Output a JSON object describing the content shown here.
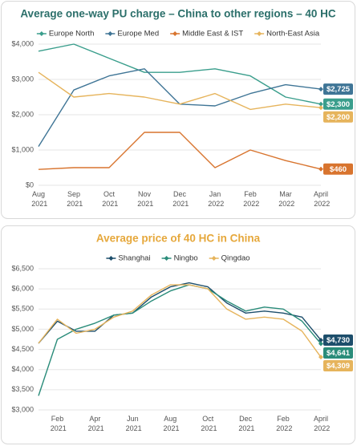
{
  "chart_data": [
    {
      "type": "line",
      "title": "Average one-way PU charge – China to other regions – 40 HC",
      "title_color": "#2b6f6a",
      "categories": [
        "Aug 2021",
        "Sep 2021",
        "Oct 2021",
        "Nov 2021",
        "Dec 2021",
        "Jan 2022",
        "Feb 2022",
        "Mar 2022",
        "April 2022"
      ],
      "series": [
        {
          "name": "Europe North",
          "color": "#3a9e8c",
          "values": [
            3800,
            4000,
            3600,
            3200,
            3200,
            3300,
            3100,
            2500,
            2300
          ],
          "value_labels": [
            null,
            null,
            null,
            null,
            null,
            null,
            null,
            null,
            "$2,300"
          ]
        },
        {
          "name": "Europe Med",
          "color": "#3f7596",
          "values": [
            1100,
            2700,
            3100,
            3300,
            2300,
            2250,
            2600,
            2850,
            2725
          ],
          "value_labels": [
            null,
            null,
            null,
            null,
            null,
            null,
            null,
            null,
            "$2,725"
          ]
        },
        {
          "name": "Middle East & IST",
          "color": "#d8742e",
          "values": [
            450,
            500,
            500,
            1500,
            1500,
            500,
            1000,
            700,
            460
          ],
          "value_labels": [
            null,
            null,
            null,
            null,
            null,
            null,
            null,
            null,
            "$460"
          ]
        },
        {
          "name": "North-East Asia",
          "color": "#e6b45c",
          "values": [
            3200,
            2500,
            2600,
            2500,
            2300,
            2600,
            2150,
            2300,
            2200
          ],
          "value_labels": [
            null,
            null,
            null,
            null,
            null,
            null,
            null,
            null,
            "$2,200"
          ]
        }
      ],
      "ylim": [
        0,
        4000
      ],
      "yticks": [
        {
          "value": 0,
          "label": "$0"
        },
        {
          "value": 1000,
          "label": "$1,000"
        },
        {
          "value": 2000,
          "label": "$2,000"
        },
        {
          "value": 3000,
          "label": "$3,000"
        },
        {
          "value": 4000,
          "label": "$4,000"
        }
      ],
      "grid": true,
      "legend": "top"
    },
    {
      "type": "line",
      "title": "Average price of 40 HC in China",
      "title_color": "#e6a83c",
      "categories": [
        null,
        "Feb 2021",
        null,
        "Apr 2021",
        null,
        "Jun 2021",
        null,
        "Aug 2021",
        null,
        "Oct 2021",
        null,
        "Dec 2021",
        null,
        "Feb 2022",
        null,
        "April 2022"
      ],
      "series": [
        {
          "name": "Shanghai",
          "color": "#1d4e6b",
          "values": [
            4650,
            5200,
            4950,
            4950,
            5350,
            5400,
            5800,
            6050,
            6150,
            6050,
            5650,
            5400,
            5450,
            5400,
            5300,
            4730
          ],
          "value_labels": [
            null,
            null,
            null,
            null,
            null,
            null,
            null,
            null,
            null,
            null,
            null,
            null,
            null,
            null,
            null,
            "$4,730"
          ]
        },
        {
          "name": "Ningbo",
          "color": "#2a8c7a",
          "values": [
            3350,
            4750,
            5000,
            5150,
            5350,
            5400,
            5700,
            5950,
            6100,
            6000,
            5700,
            5450,
            5550,
            5500,
            5200,
            4641
          ],
          "value_labels": [
            null,
            null,
            null,
            null,
            null,
            null,
            null,
            null,
            null,
            null,
            null,
            null,
            null,
            null,
            null,
            "$4,641"
          ]
        },
        {
          "name": "Qingdao",
          "color": "#e6b45c",
          "values": [
            4650,
            5250,
            4900,
            5000,
            5300,
            5450,
            5850,
            6100,
            6100,
            6000,
            5500,
            5250,
            5300,
            5250,
            4950,
            4309
          ],
          "value_labels": [
            null,
            null,
            null,
            null,
            null,
            null,
            null,
            null,
            null,
            null,
            null,
            null,
            null,
            null,
            null,
            "$4,309"
          ]
        }
      ],
      "ylim": [
        3000,
        6500
      ],
      "yticks": [
        {
          "value": 3000,
          "label": "$3,000"
        },
        {
          "value": 3500,
          "label": "$3,500"
        },
        {
          "value": 4000,
          "label": "$4,000"
        },
        {
          "value": 4500,
          "label": "$4,500"
        },
        {
          "value": 5000,
          "label": "$5,000"
        },
        {
          "value": 5500,
          "label": "$5,500"
        },
        {
          "value": 6000,
          "label": "$6,000"
        },
        {
          "value": 6500,
          "label": "$6,500"
        }
      ],
      "grid": true,
      "legend": "top"
    }
  ]
}
